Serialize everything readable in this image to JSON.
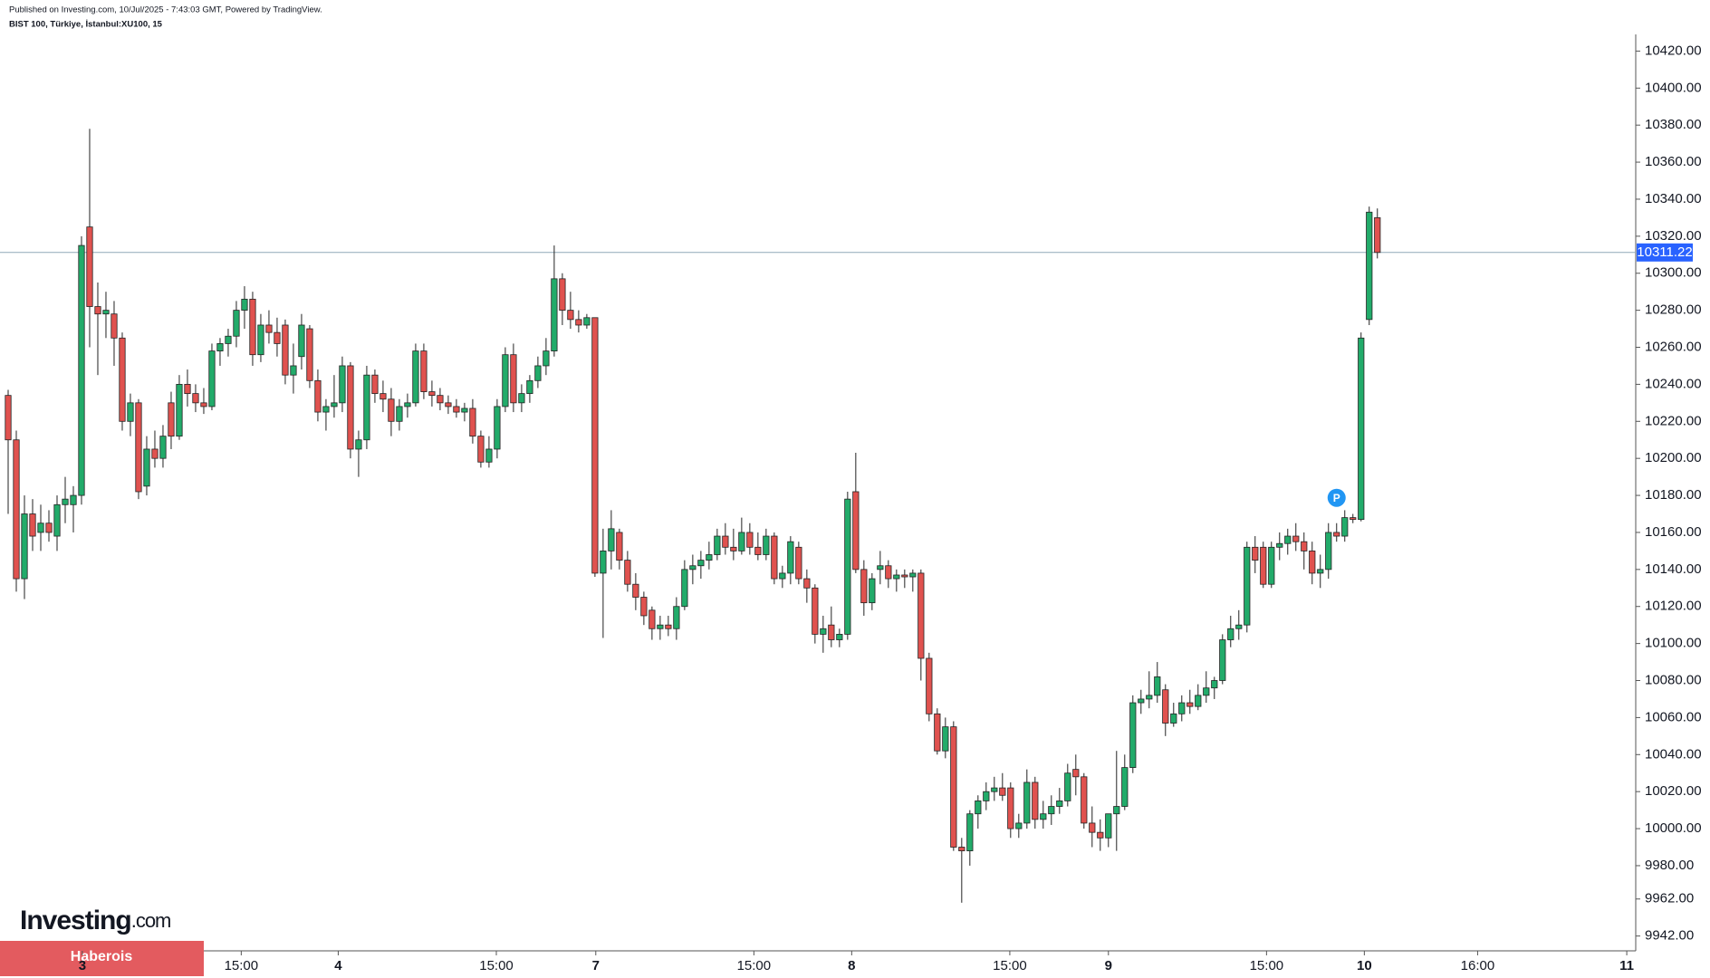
{
  "header": {
    "published": "Published on Investing.com, 10/Jul/2025 - 7:43:03 GMT, Powered by TradingView.",
    "symbol": "BIST 100, Türkiye, İstanbul:XU100, 15"
  },
  "watermark": {
    "brand": "Investing",
    "suffix": ".com"
  },
  "banner": "Haberois",
  "chart_data": {
    "type": "candlestick",
    "up_color": "#22ab6a",
    "down_color": "#e0524f",
    "last_price": 10311.22,
    "last_price_color": "#2962ff",
    "marker_label": "P",
    "xlim": [
      -1,
      199.7
    ],
    "xticks": [
      {
        "value": 9.1,
        "label": "3"
      },
      {
        "value": 28.6,
        "label": "15:00"
      },
      {
        "value": 40.5,
        "label": "4"
      },
      {
        "value": 59.9,
        "label": "15:00"
      },
      {
        "value": 72.1,
        "label": "7"
      },
      {
        "value": 91.5,
        "label": "15:00"
      },
      {
        "value": 103.5,
        "label": "8"
      },
      {
        "value": 122.9,
        "label": "15:00"
      },
      {
        "value": 135,
        "label": "9"
      },
      {
        "value": 154.4,
        "label": "15:00"
      },
      {
        "value": 166.4,
        "label": "10"
      },
      {
        "value": 180.3,
        "label": "16:00"
      },
      {
        "value": 198.6,
        "label": "11"
      }
    ],
    "ylim": [
      9934,
      10429
    ],
    "yticks": [
      {
        "value": 10420,
        "label": "10420.00"
      },
      {
        "value": 10400,
        "label": "10400.00"
      },
      {
        "value": 10380,
        "label": "10380.00"
      },
      {
        "value": 10360,
        "label": "10360.00"
      },
      {
        "value": 10340,
        "label": "10340.00"
      },
      {
        "value": 10320,
        "label": "10320.00"
      },
      {
        "value": 10300,
        "label": "10300.00"
      },
      {
        "value": 10280,
        "label": "10280.00"
      },
      {
        "value": 10260,
        "label": "10260.00"
      },
      {
        "value": 10240,
        "label": "10240.00"
      },
      {
        "value": 10220,
        "label": "10220.00"
      },
      {
        "value": 10200,
        "label": "10200.00"
      },
      {
        "value": 10180,
        "label": "10180.00"
      },
      {
        "value": 10160,
        "label": "10160.00"
      },
      {
        "value": 10140,
        "label": "10140.00"
      },
      {
        "value": 10120,
        "label": "10120.00"
      },
      {
        "value": 10100,
        "label": "10100.00"
      },
      {
        "value": 10080,
        "label": "10080.00"
      },
      {
        "value": 10060,
        "label": "10060.00"
      },
      {
        "value": 10040,
        "label": "10040.00"
      },
      {
        "value": 10020,
        "label": "10020.00"
      },
      {
        "value": 10000,
        "label": "10000.00"
      },
      {
        "value": 9980,
        "label": "9980.00"
      },
      {
        "value": 9962,
        "label": "9962.00"
      },
      {
        "value": 9942,
        "label": "9942.00"
      }
    ],
    "ohlc": [
      [
        10234,
        10237,
        10170,
        10210
      ],
      [
        10210,
        10215,
        10128,
        10135
      ],
      [
        10135,
        10180,
        10124,
        10170
      ],
      [
        10170,
        10178,
        10150,
        10158
      ],
      [
        10160,
        10175,
        10150,
        10165
      ],
      [
        10165,
        10172,
        10155,
        10160
      ],
      [
        10158,
        10180,
        10150,
        10175
      ],
      [
        10175,
        10190,
        10165,
        10178
      ],
      [
        10175,
        10185,
        10160,
        10180
      ],
      [
        10180,
        10320,
        10175,
        10315
      ],
      [
        10325,
        10378,
        10260,
        10282
      ],
      [
        10282,
        10295,
        10245,
        10278
      ],
      [
        10278,
        10290,
        10265,
        10280
      ],
      [
        10278,
        10285,
        10250,
        10265
      ],
      [
        10265,
        10268,
        10215,
        10220
      ],
      [
        10220,
        10235,
        10212,
        10230
      ],
      [
        10230,
        10232,
        10178,
        10182
      ],
      [
        10185,
        10212,
        10180,
        10205
      ],
      [
        10205,
        10215,
        10195,
        10200
      ],
      [
        10200,
        10218,
        10195,
        10212
      ],
      [
        10230,
        10236,
        10205,
        10212
      ],
      [
        10212,
        10245,
        10210,
        10240
      ],
      [
        10240,
        10248,
        10228,
        10235
      ],
      [
        10235,
        10240,
        10225,
        10230
      ],
      [
        10230,
        10238,
        10224,
        10228
      ],
      [
        10228,
        10262,
        10226,
        10258
      ],
      [
        10258,
        10265,
        10250,
        10262
      ],
      [
        10262,
        10270,
        10255,
        10266
      ],
      [
        10266,
        10285,
        10260,
        10280
      ],
      [
        10280,
        10293,
        10270,
        10286
      ],
      [
        10286,
        10290,
        10250,
        10256
      ],
      [
        10256,
        10278,
        10252,
        10272
      ],
      [
        10272,
        10280,
        10262,
        10268
      ],
      [
        10268,
        10276,
        10255,
        10262
      ],
      [
        10272,
        10275,
        10240,
        10245
      ],
      [
        10245,
        10262,
        10235,
        10250
      ],
      [
        10255,
        10278,
        10248,
        10272
      ],
      [
        10270,
        10272,
        10238,
        10242
      ],
      [
        10242,
        10248,
        10220,
        10225
      ],
      [
        10225,
        10232,
        10215,
        10228
      ],
      [
        10228,
        10245,
        10222,
        10230
      ],
      [
        10230,
        10255,
        10225,
        10250
      ],
      [
        10250,
        10252,
        10200,
        10205
      ],
      [
        10205,
        10215,
        10190,
        10210
      ],
      [
        10210,
        10250,
        10205,
        10245
      ],
      [
        10245,
        10248,
        10230,
        10235
      ],
      [
        10235,
        10242,
        10225,
        10232
      ],
      [
        10232,
        10238,
        10212,
        10220
      ],
      [
        10220,
        10232,
        10215,
        10228
      ],
      [
        10228,
        10235,
        10222,
        10230
      ],
      [
        10230,
        10262,
        10228,
        10258
      ],
      [
        10258,
        10262,
        10232,
        10236
      ],
      [
        10236,
        10242,
        10228,
        10234
      ],
      [
        10234,
        10238,
        10226,
        10230
      ],
      [
        10230,
        10234,
        10224,
        10228
      ],
      [
        10228,
        10232,
        10222,
        10225
      ],
      [
        10225,
        10230,
        10220,
        10227
      ],
      [
        10227,
        10232,
        10208,
        10212
      ],
      [
        10212,
        10215,
        10195,
        10198
      ],
      [
        10198,
        10212,
        10195,
        10205
      ],
      [
        10205,
        10232,
        10200,
        10228
      ],
      [
        10228,
        10260,
        10225,
        10256
      ],
      [
        10256,
        10262,
        10225,
        10230
      ],
      [
        10230,
        10240,
        10225,
        10235
      ],
      [
        10235,
        10245,
        10230,
        10242
      ],
      [
        10242,
        10255,
        10238,
        10250
      ],
      [
        10250,
        10265,
        10245,
        10258
      ],
      [
        10258,
        10315,
        10255,
        10297
      ],
      [
        10297,
        10300,
        10272,
        10280
      ],
      [
        10280,
        10290,
        10270,
        10275
      ],
      [
        10275,
        10280,
        10268,
        10272
      ],
      [
        10272,
        10278,
        10270,
        10276
      ],
      [
        10276,
        10276,
        10136,
        10138
      ],
      [
        10138,
        10162,
        10103,
        10150
      ],
      [
        10150,
        10172,
        10140,
        10162
      ],
      [
        10160,
        10162,
        10140,
        10145
      ],
      [
        10145,
        10150,
        10128,
        10132
      ],
      [
        10132,
        10138,
        10118,
        10125
      ],
      [
        10125,
        10128,
        10110,
        10115
      ],
      [
        10118,
        10120,
        10102,
        10108
      ],
      [
        10108,
        10115,
        10102,
        10110
      ],
      [
        10110,
        10115,
        10104,
        10108
      ],
      [
        10108,
        10125,
        10102,
        10120
      ],
      [
        10120,
        10145,
        10118,
        10140
      ],
      [
        10140,
        10148,
        10132,
        10142
      ],
      [
        10142,
        10150,
        10135,
        10145
      ],
      [
        10145,
        10155,
        10140,
        10148
      ],
      [
        10148,
        10162,
        10145,
        10158
      ],
      [
        10158,
        10165,
        10148,
        10152
      ],
      [
        10152,
        10162,
        10145,
        10150
      ],
      [
        10150,
        10168,
        10148,
        10160
      ],
      [
        10160,
        10165,
        10148,
        10152
      ],
      [
        10152,
        10160,
        10145,
        10148
      ],
      [
        10148,
        10162,
        10145,
        10158
      ],
      [
        10158,
        10160,
        10132,
        10135
      ],
      [
        10135,
        10142,
        10130,
        10138
      ],
      [
        10138,
        10158,
        10132,
        10155
      ],
      [
        10152,
        10155,
        10132,
        10135
      ],
      [
        10135,
        10140,
        10122,
        10130
      ],
      [
        10130,
        10132,
        10100,
        10105
      ],
      [
        10105,
        10115,
        10095,
        10108
      ],
      [
        10110,
        10120,
        10098,
        10102
      ],
      [
        10102,
        10108,
        10098,
        10105
      ],
      [
        10105,
        10182,
        10102,
        10178
      ],
      [
        10182,
        10203,
        10138,
        10140
      ],
      [
        10140,
        10145,
        10115,
        10122
      ],
      [
        10122,
        10138,
        10118,
        10135
      ],
      [
        10140,
        10150,
        10132,
        10142
      ],
      [
        10142,
        10145,
        10130,
        10135
      ],
      [
        10135,
        10140,
        10128,
        10137
      ],
      [
        10137,
        10140,
        10130,
        10136
      ],
      [
        10136,
        10140,
        10128,
        10138
      ],
      [
        10138,
        10140,
        10080,
        10092
      ],
      [
        10092,
        10095,
        10058,
        10062
      ],
      [
        10062,
        10065,
        10040,
        10042
      ],
      [
        10042,
        10060,
        10038,
        10055
      ],
      [
        10055,
        10058,
        9988,
        9990
      ],
      [
        9990,
        9995,
        9960,
        9988
      ],
      [
        9988,
        10010,
        9980,
        10008
      ],
      [
        10008,
        10018,
        10000,
        10015
      ],
      [
        10015,
        10025,
        10010,
        10020
      ],
      [
        10020,
        10028,
        10015,
        10022
      ],
      [
        10022,
        10030,
        10015,
        10018
      ],
      [
        10022,
        10025,
        9995,
        10000
      ],
      [
        10000,
        10008,
        9995,
        10003
      ],
      [
        10003,
        10032,
        10000,
        10025
      ],
      [
        10025,
        10028,
        10000,
        10005
      ],
      [
        10005,
        10015,
        10000,
        10008
      ],
      [
        10008,
        10018,
        10002,
        10012
      ],
      [
        10012,
        10022,
        10008,
        10015
      ],
      [
        10015,
        10035,
        10012,
        10030
      ],
      [
        10032,
        10040,
        10018,
        10028
      ],
      [
        10028,
        10030,
        10000,
        10003
      ],
      [
        10003,
        10012,
        9990,
        9998
      ],
      [
        9998,
        10005,
        9988,
        9995
      ],
      [
        9995,
        10008,
        9990,
        10008
      ],
      [
        10008,
        10042,
        9988,
        10012
      ],
      [
        10012,
        10040,
        10010,
        10033
      ],
      [
        10033,
        10072,
        10030,
        10068
      ],
      [
        10068,
        10075,
        10062,
        10070
      ],
      [
        10070,
        10085,
        10065,
        10072
      ],
      [
        10072,
        10090,
        10068,
        10082
      ],
      [
        10075,
        10078,
        10050,
        10057
      ],
      [
        10057,
        10068,
        10055,
        10062
      ],
      [
        10062,
        10072,
        10058,
        10068
      ],
      [
        10068,
        10075,
        10062,
        10066
      ],
      [
        10066,
        10078,
        10064,
        10072
      ],
      [
        10072,
        10085,
        10068,
        10076
      ],
      [
        10076,
        10082,
        10070,
        10080
      ],
      [
        10080,
        10105,
        10078,
        10102
      ],
      [
        10102,
        10115,
        10098,
        10108
      ],
      [
        10108,
        10118,
        10102,
        10110
      ],
      [
        10110,
        10155,
        10106,
        10152
      ],
      [
        10152,
        10158,
        10138,
        10145
      ],
      [
        10152,
        10155,
        10130,
        10132
      ],
      [
        10132,
        10155,
        10130,
        10152
      ],
      [
        10152,
        10160,
        10145,
        10154
      ],
      [
        10154,
        10162,
        10148,
        10158
      ],
      [
        10158,
        10165,
        10150,
        10155
      ],
      [
        10155,
        10160,
        10140,
        10150
      ],
      [
        10150,
        10155,
        10132,
        10138
      ],
      [
        10138,
        10148,
        10130,
        10140
      ],
      [
        10140,
        10165,
        10135,
        10160
      ],
      [
        10160,
        10165,
        10155,
        10158
      ],
      [
        10158,
        10172,
        10155,
        10168
      ],
      [
        10168,
        10170,
        10165,
        10167
      ],
      [
        10167,
        10268,
        10166,
        10265
      ],
      [
        10275,
        10336,
        10272,
        10333
      ],
      [
        10330,
        10335,
        10308,
        10311.22
      ]
    ]
  }
}
